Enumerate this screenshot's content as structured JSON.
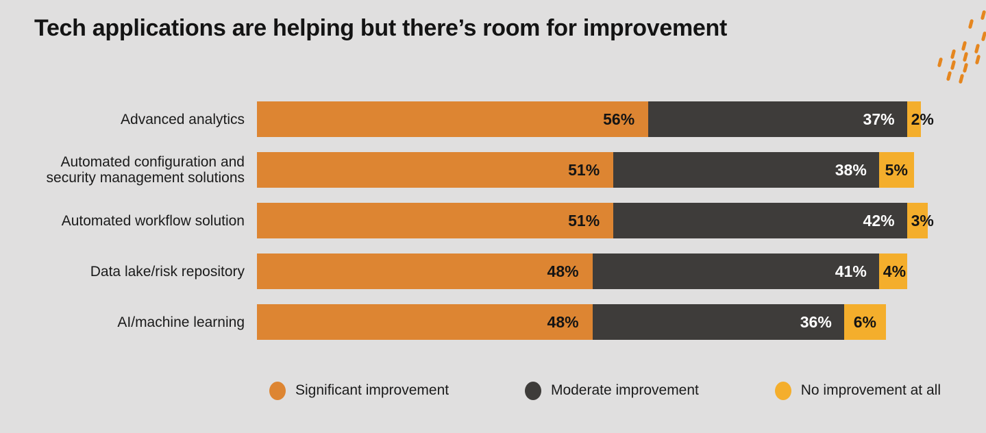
{
  "title": "Tech applications are helping but there’s room for improvement",
  "colors": {
    "background": "#E0DFDF",
    "significant": "#DD8532",
    "moderate": "#3E3C3A",
    "none": "#F4AE2C",
    "deco_dash": "#E5861F",
    "text_dark": "#141414",
    "text_on_dark": "#FFFFFF"
  },
  "chart_data": {
    "type": "bar",
    "orientation": "horizontal-stacked",
    "title": "Tech applications are helping but there’s room for improvement",
    "categories": [
      "Advanced analytics",
      "Automated configuration and\nsecurity management solutions",
      "Automated workflow solution",
      "Data lake/risk repository",
      "AI/machine learning"
    ],
    "series": [
      {
        "name": "Significant improvement",
        "color": "#DD8532",
        "label_color": "#141414",
        "values": [
          56,
          51,
          51,
          48,
          48
        ]
      },
      {
        "name": "Moderate improvement",
        "color": "#3E3C3A",
        "label_color": "#FFFFFF",
        "values": [
          37,
          38,
          42,
          41,
          36
        ]
      },
      {
        "name": "No improvement at all",
        "color": "#F4AE2C",
        "label_color": "#141414",
        "values": [
          2,
          5,
          3,
          4,
          6
        ]
      }
    ],
    "value_suffix": "%",
    "xlim": [
      0,
      100
    ],
    "grid": false,
    "legend_position": "bottom"
  },
  "legend": {
    "items": [
      {
        "label": "Significant improvement",
        "color": "#DD8532"
      },
      {
        "label": "Moderate improvement",
        "color": "#3E3C3A"
      },
      {
        "label": "No improvement at all",
        "color": "#F4AE2C"
      }
    ]
  },
  "deco": {
    "name": "diagonal-dash-pattern",
    "dashes": [
      [
        88,
        35
      ],
      [
        106,
        22
      ],
      [
        107,
        53
      ],
      [
        78,
        67
      ],
      [
        97,
        71
      ],
      [
        62,
        79
      ],
      [
        80,
        83
      ],
      [
        98,
        87
      ],
      [
        43,
        91
      ],
      [
        62,
        95
      ],
      [
        80,
        99
      ],
      [
        56,
        111
      ],
      [
        74,
        115
      ]
    ]
  }
}
